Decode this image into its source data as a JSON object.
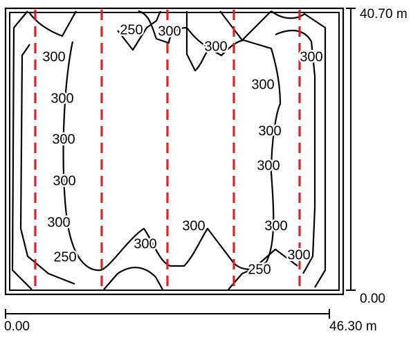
{
  "room": {
    "width_m": 46.3,
    "depth_m": 40.7,
    "width_start_label": "0.00",
    "width_end_label": "46.30 m",
    "depth_start_label": "0.00",
    "depth_end_label": "40.70 m"
  },
  "isoline_labels": [
    "250",
    "300",
    "300",
    "300",
    "300",
    "300",
    "300",
    "300",
    "300",
    "300",
    "300",
    "300",
    "300",
    "300",
    "250",
    "300",
    "250",
    "300"
  ],
  "colors": {
    "contour": "#000000",
    "luminaire_row": "#e02020",
    "frame": "#000000",
    "background": "#ffffff"
  },
  "luminaire_rows": {
    "count": 5,
    "style": "dashed"
  }
}
